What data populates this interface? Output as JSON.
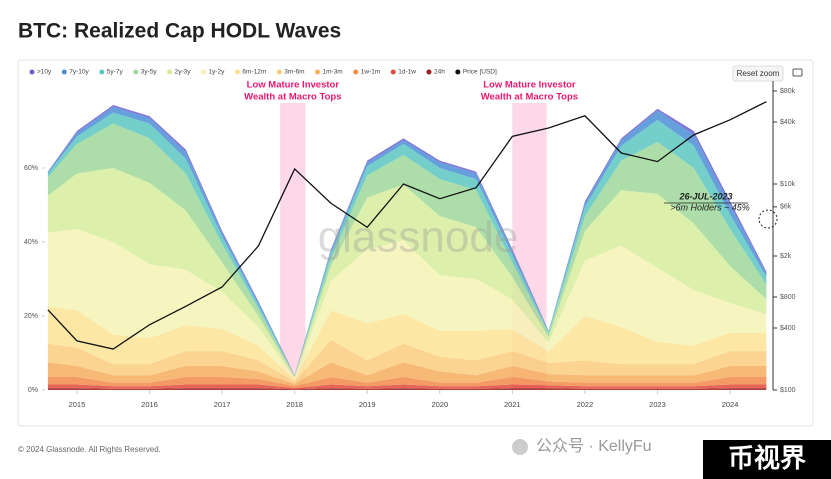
{
  "page": {
    "title": "BTC: Realized Cap HODL Waves",
    "reset_zoom": "Reset zoom",
    "footer": "© 2024 Glassnode. All Rights Reserved.",
    "watermark": "glassnode",
    "wechat": "公众号 · KellyFu",
    "brand": "币视界"
  },
  "chart_data": {
    "type": "stacked-area",
    "x": [
      2014.6,
      2015.0,
      2015.5,
      2016.0,
      2016.5,
      2017.0,
      2017.5,
      2018.0,
      2018.5,
      2019.0,
      2019.5,
      2020.0,
      2020.5,
      2021.0,
      2021.5,
      2022.0,
      2022.5,
      2023.0,
      2023.5,
      2024.0,
      2024.5
    ],
    "xlim": [
      2014.56,
      2024.55
    ],
    "xticks": [
      2015,
      2016,
      2017,
      2018,
      2019,
      2020,
      2021,
      2022,
      2023,
      2024
    ],
    "ylim": [
      0,
      83.5
    ],
    "yticks": [
      {
        "value": 0,
        "label": "0%"
      },
      {
        "value": 20,
        "label": "20%"
      },
      {
        "value": 40,
        "label": "40%"
      },
      {
        "value": 60,
        "label": "60%"
      }
    ],
    "y2lim": [
      100,
      100000
    ],
    "y2scale": "log",
    "y2ticks": [
      {
        "value": 100,
        "label": "$100"
      },
      {
        "value": 400,
        "label": "$400"
      },
      {
        "value": 800,
        "label": "$800"
      },
      {
        "value": 2000,
        "label": "$2k"
      },
      {
        "value": 6000,
        "label": "$6k"
      },
      {
        "value": 10000,
        "label": "$10k"
      },
      {
        "value": 40000,
        "label": "$40k"
      },
      {
        "value": 80000,
        "label": "$80k"
      }
    ],
    "series": [
      {
        "name": ">10y",
        "color": "#6a5fd0",
        "values": [
          0.2,
          0.5,
          0.5,
          0.5,
          0.7,
          0.5,
          0.3,
          0.05,
          0.3,
          0.5,
          0.5,
          0.5,
          0.5,
          0.5,
          0.1,
          0.5,
          0.5,
          0.5,
          1,
          1,
          0.5
        ]
      },
      {
        "name": "7y-10y",
        "color": "#4a8fd6",
        "values": [
          0.3,
          1,
          1.5,
          1.5,
          1.8,
          1,
          0.7,
          0.05,
          0.7,
          1,
          1,
          1.5,
          1.5,
          1,
          0.2,
          1,
          1.5,
          2.5,
          3,
          2.5,
          1
        ]
      },
      {
        "name": "5y-7y",
        "color": "#5cc6c0",
        "values": [
          1,
          2,
          3,
          4,
          4,
          2,
          1,
          0.1,
          1.5,
          2.5,
          3,
          3,
          3,
          2,
          0.4,
          2.5,
          4,
          6,
          6,
          4,
          2
        ]
      },
      {
        "name": "3y-5y",
        "color": "#9fd89a",
        "values": [
          5,
          8,
          12,
          12,
          10,
          5,
          2,
          0.2,
          2,
          6,
          8,
          10,
          10,
          4,
          1,
          4,
          8,
          14,
          15,
          10,
          4
        ]
      },
      {
        "name": "2y-3y",
        "color": "#d6ec9c",
        "values": [
          10,
          15,
          20,
          22,
          16,
          8,
          3,
          0.3,
          4,
          14,
          15,
          16,
          14,
          6,
          1.5,
          8,
          15,
          20,
          18,
          10,
          4
        ]
      },
      {
        "name": "1y-2y",
        "color": "#f5f2b4",
        "values": [
          20,
          22,
          25,
          20,
          15,
          10,
          5,
          0.5,
          8,
          20,
          20,
          15,
          14,
          8,
          2.5,
          15,
          22,
          20,
          15,
          8,
          5
        ]
      },
      {
        "name": "6m-12m",
        "color": "#fbe394",
        "values": [
          10,
          10,
          8,
          7,
          7,
          6,
          4,
          0.6,
          8,
          10,
          8,
          7,
          8,
          6,
          3,
          12,
          10,
          6,
          5,
          5,
          5
        ]
      },
      {
        "name": "3m-6m",
        "color": "#f9cc7c",
        "values": [
          5,
          5,
          3,
          3,
          4,
          4,
          3,
          0.6,
          6,
          4,
          5,
          4,
          4,
          4,
          3,
          4,
          3,
          3,
          3,
          4,
          4
        ]
      },
      {
        "name": "1m-3m",
        "color": "#f6ae5e",
        "values": [
          4,
          3,
          2,
          2,
          3,
          3,
          2,
          0.6,
          4,
          2,
          4,
          3,
          2,
          3,
          2,
          2,
          2,
          2,
          2,
          3,
          3
        ]
      },
      {
        "name": "1w-1m",
        "color": "#f28a4a",
        "values": [
          2,
          2,
          1,
          1,
          2,
          2,
          1.5,
          0.5,
          2,
          1,
          2,
          1,
          1,
          2,
          1,
          1,
          1,
          1,
          1,
          2,
          2
        ]
      },
      {
        "name": "1d-1w",
        "color": "#e04a3c",
        "values": [
          1,
          1,
          0.7,
          0.7,
          1,
          1,
          1,
          0.3,
          1,
          0.7,
          1,
          0.7,
          0.7,
          1,
          0.8,
          0.7,
          0.7,
          0.7,
          0.7,
          1,
          1
        ]
      },
      {
        "name": "24h",
        "color": "#9c1c1c",
        "values": [
          0.5,
          0.5,
          0.3,
          0.3,
          0.5,
          0.5,
          0.5,
          0.2,
          0.5,
          0.3,
          0.5,
          0.3,
          0.3,
          0.5,
          0.5,
          0.3,
          0.3,
          0.3,
          0.3,
          0.5,
          0.5
        ]
      },
      {
        "name": "Price [USD]",
        "color": "#111111",
        "axis": "y2",
        "values": [
          600,
          300,
          250,
          430,
          650,
          1000,
          2500,
          14000,
          6500,
          3800,
          10000,
          7200,
          9200,
          29000,
          35000,
          46000,
          20000,
          16500,
          30000,
          42000,
          63000
        ]
      }
    ],
    "highlights": [
      {
        "range": [
          2017.8,
          2018.15
        ],
        "lines": [
          "Low Mature Investor",
          "Wealth at Macro Tops"
        ]
      },
      {
        "range": [
          2021.0,
          2021.47
        ],
        "lines": [
          "Low Mature Investor",
          "Wealth at Macro Tops"
        ]
      }
    ],
    "annotation": {
      "title": "26-JUL-2023",
      "text": ">6m Holders ~ 45%"
    }
  }
}
